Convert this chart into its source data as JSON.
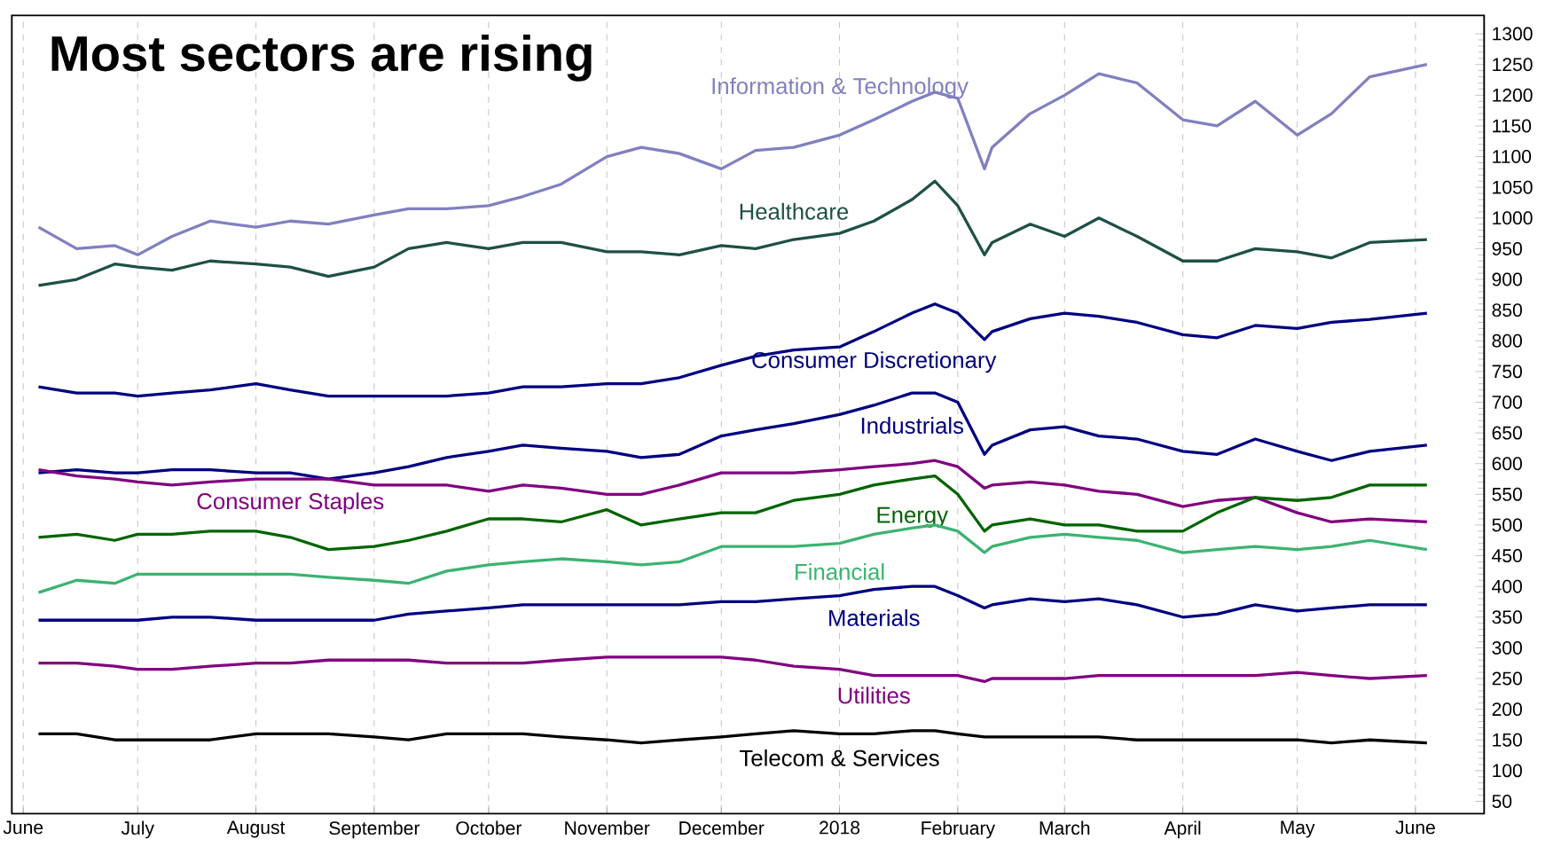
{
  "chart_data": {
    "type": "line",
    "title": "Most sectors are rising",
    "x": [
      "2017-06-05",
      "2017-06-15",
      "2017-06-25",
      "2017-07-01",
      "2017-07-10",
      "2017-07-20",
      "2017-08-01",
      "2017-08-10",
      "2017-08-20",
      "2017-09-01",
      "2017-09-10",
      "2017-09-20",
      "2017-10-01",
      "2017-10-10",
      "2017-10-20",
      "2017-11-01",
      "2017-11-10",
      "2017-11-20",
      "2017-12-01",
      "2017-12-10",
      "2017-12-20",
      "2018-01-01",
      "2018-01-10",
      "2018-01-20",
      "2018-01-26",
      "2018-02-01",
      "2018-02-08",
      "2018-02-10",
      "2018-02-20",
      "2018-03-01",
      "2018-03-10",
      "2018-03-20",
      "2018-04-01",
      "2018-04-10",
      "2018-04-20",
      "2018-05-01",
      "2018-05-10",
      "2018-05-20",
      "2018-06-04"
    ],
    "series": [
      {
        "name": "Information & Technology",
        "color": "#8080c0",
        "values": [
          985,
          950,
          955,
          940,
          970,
          995,
          985,
          995,
          990,
          1005,
          1015,
          1015,
          1020,
          1035,
          1055,
          1100,
          1115,
          1105,
          1080,
          1110,
          1115,
          1135,
          1160,
          1190,
          1205,
          1195,
          1080,
          1115,
          1170,
          1200,
          1235,
          1220,
          1160,
          1150,
          1190,
          1135,
          1170,
          1230,
          1250
        ]
      },
      {
        "name": "Healthcare",
        "color": "#1e5046",
        "values": [
          890,
          900,
          925,
          920,
          915,
          930,
          925,
          920,
          905,
          920,
          950,
          960,
          950,
          960,
          960,
          945,
          945,
          940,
          955,
          950,
          965,
          975,
          995,
          1030,
          1060,
          1020,
          940,
          960,
          990,
          970,
          1000,
          970,
          930,
          930,
          950,
          945,
          935,
          960,
          965
        ]
      },
      {
        "name": "Consumer Discretionary",
        "color": "#000080",
        "values": [
          725,
          715,
          715,
          710,
          715,
          720,
          730,
          720,
          710,
          710,
          710,
          710,
          715,
          725,
          725,
          730,
          730,
          740,
          760,
          775,
          785,
          790,
          815,
          845,
          860,
          845,
          802,
          815,
          836,
          845,
          840,
          830,
          810,
          805,
          825,
          820,
          830,
          835,
          845
        ]
      },
      {
        "name": "Industrials",
        "color": "#000080",
        "values": [
          585,
          590,
          585,
          585,
          590,
          590,
          585,
          585,
          575,
          585,
          595,
          610,
          620,
          630,
          625,
          620,
          610,
          615,
          645,
          655,
          665,
          680,
          695,
          715,
          715,
          700,
          615,
          630,
          655,
          660,
          645,
          640,
          620,
          615,
          640,
          620,
          605,
          620,
          630
        ]
      },
      {
        "name": "Consumer Staples",
        "color": "#800080",
        "values": [
          590,
          580,
          575,
          570,
          565,
          570,
          575,
          575,
          575,
          565,
          565,
          565,
          555,
          565,
          560,
          550,
          550,
          565,
          585,
          585,
          585,
          590,
          595,
          600,
          605,
          595,
          560,
          565,
          570,
          565,
          555,
          550,
          530,
          540,
          545,
          520,
          505,
          510,
          505
        ]
      },
      {
        "name": "Energy",
        "color": "#006400",
        "values": [
          480,
          485,
          475,
          485,
          485,
          490,
          490,
          480,
          460,
          465,
          475,
          490,
          510,
          510,
          505,
          525,
          500,
          510,
          520,
          520,
          540,
          550,
          565,
          575,
          580,
          550,
          490,
          500,
          510,
          500,
          500,
          490,
          490,
          520,
          545,
          540,
          545,
          565,
          565
        ]
      },
      {
        "name": "Financial",
        "color": "#3cb371",
        "values": [
          390,
          410,
          405,
          420,
          420,
          420,
          420,
          420,
          415,
          410,
          405,
          425,
          435,
          440,
          445,
          440,
          435,
          440,
          465,
          465,
          465,
          470,
          485,
          495,
          500,
          490,
          455,
          465,
          480,
          485,
          480,
          475,
          455,
          460,
          465,
          460,
          465,
          475,
          460
        ]
      },
      {
        "name": "Materials",
        "color": "#000080",
        "values": [
          345,
          345,
          345,
          345,
          350,
          350,
          345,
          345,
          345,
          345,
          355,
          360,
          365,
          370,
          370,
          370,
          370,
          370,
          375,
          375,
          380,
          385,
          395,
          400,
          400,
          385,
          365,
          370,
          380,
          375,
          380,
          370,
          350,
          355,
          370,
          360,
          365,
          370,
          370
        ]
      },
      {
        "name": "Utilities",
        "color": "#800080",
        "values": [
          275,
          275,
          270,
          265,
          265,
          270,
          275,
          275,
          280,
          280,
          280,
          275,
          275,
          275,
          280,
          285,
          285,
          285,
          285,
          280,
          270,
          265,
          255,
          255,
          255,
          255,
          245,
          250,
          250,
          250,
          255,
          255,
          255,
          255,
          255,
          260,
          255,
          250,
          255
        ]
      },
      {
        "name": "Telecom & Services",
        "color": "#000000",
        "values": [
          160,
          160,
          150,
          150,
          150,
          150,
          160,
          160,
          160,
          155,
          150,
          160,
          160,
          160,
          155,
          150,
          145,
          150,
          155,
          160,
          165,
          160,
          160,
          165,
          165,
          160,
          155,
          155,
          155,
          155,
          155,
          150,
          150,
          150,
          150,
          150,
          145,
          150,
          145
        ]
      }
    ],
    "xlim": [
      "2017-05-29",
      "2018-06-19"
    ],
    "xticks": [
      {
        "value": "2017-06-01",
        "label": "June"
      },
      {
        "value": "2017-07-01",
        "label": "July"
      },
      {
        "value": "2017-08-01",
        "label": "August"
      },
      {
        "value": "2017-09-01",
        "label": "September"
      },
      {
        "value": "2017-10-01",
        "label": "October"
      },
      {
        "value": "2017-11-01",
        "label": "November"
      },
      {
        "value": "2017-12-01",
        "label": "December"
      },
      {
        "value": "2018-01-01",
        "label": "2018"
      },
      {
        "value": "2018-02-01",
        "label": "February"
      },
      {
        "value": "2018-03-01",
        "label": "March"
      },
      {
        "value": "2018-04-01",
        "label": "April"
      },
      {
        "value": "2018-05-01",
        "label": "May"
      },
      {
        "value": "2018-06-01",
        "label": "June"
      }
    ],
    "ylim": [
      30,
      1330
    ],
    "yticks": [
      50,
      100,
      150,
      200,
      250,
      300,
      350,
      400,
      450,
      500,
      550,
      600,
      650,
      700,
      750,
      800,
      850,
      900,
      950,
      1000,
      1050,
      1100,
      1150,
      1200,
      1250,
      1300
    ],
    "grid": "x",
    "marker": "none",
    "line_style": "solid"
  }
}
